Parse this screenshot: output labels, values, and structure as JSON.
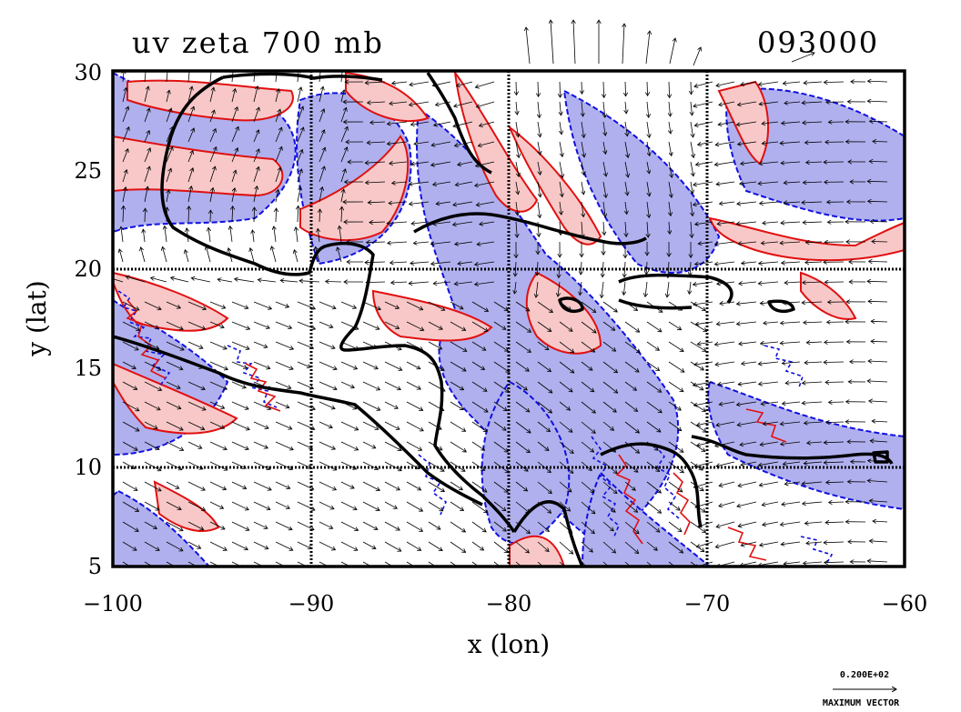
{
  "title_left": "uv zeta 700 mb",
  "title_right": "093000",
  "x_axis": {
    "label": "x (lon)",
    "ticks": [
      "−100",
      "−90",
      "−80",
      "−70",
      "−60"
    ],
    "range": [
      -100,
      -60
    ]
  },
  "y_axis": {
    "label": "y (lat)",
    "ticks": [
      "5",
      "10",
      "15",
      "20",
      "25",
      "30"
    ],
    "range": [
      5,
      30
    ]
  },
  "reference_vector": {
    "value": "0.200E+02",
    "label": "MAXIMUM VECTOR"
  },
  "colors": {
    "positive_fill": "#f8c8c8",
    "positive_contour": "#e01010",
    "negative_fill": "#b0b0ee",
    "negative_contour": "#1010e0",
    "coastline": "#000000",
    "grid": "#000000"
  },
  "grid_lines": {
    "lon": [
      -90,
      -80,
      -70
    ],
    "lat": [
      10,
      20
    ]
  }
}
